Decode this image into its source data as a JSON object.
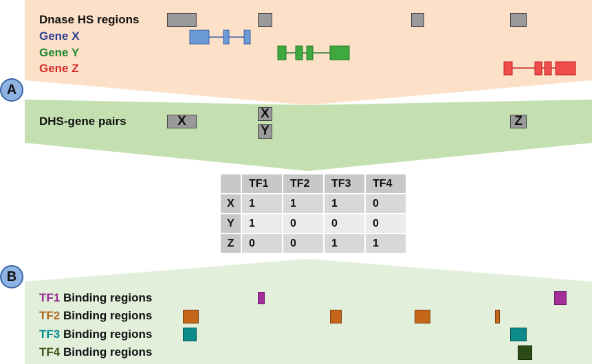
{
  "section_a": {
    "badge": "A",
    "dnase_label": "Dnase HS regions",
    "gene_x_label": "Gene X",
    "gene_y_label": "Gene Y",
    "gene_z_label": "Gene Z",
    "pairs_label": "DHS-gene pairs",
    "pairs": [
      "X",
      "X",
      "Y",
      "Z"
    ]
  },
  "table": {
    "columns": [
      "TF1",
      "TF2",
      "TF3",
      "TF4"
    ],
    "rows": [
      {
        "label": "X",
        "values": [
          "1",
          "1",
          "1",
          "0"
        ]
      },
      {
        "label": "Y",
        "values": [
          "1",
          "0",
          "0",
          "0"
        ]
      },
      {
        "label": "Z",
        "values": [
          "0",
          "0",
          "1",
          "1"
        ]
      }
    ]
  },
  "section_b": {
    "badge": "B",
    "tf_labels": [
      {
        "tf": "TF1",
        "suffix": " Binding regions"
      },
      {
        "tf": "TF2",
        "suffix": " Binding regions"
      },
      {
        "tf": "TF3",
        "suffix": " Binding regions"
      },
      {
        "tf": "TF4",
        "suffix": " Binding regions"
      }
    ]
  },
  "colors": {
    "gene_x": "#2b3f8f",
    "gene_y": "#1f8a2e",
    "gene_z": "#d42a2a",
    "tf1": "#9b2b93",
    "tf2": "#b5651d",
    "tf3": "#008b8b",
    "tf4": "#3a5a1a"
  }
}
